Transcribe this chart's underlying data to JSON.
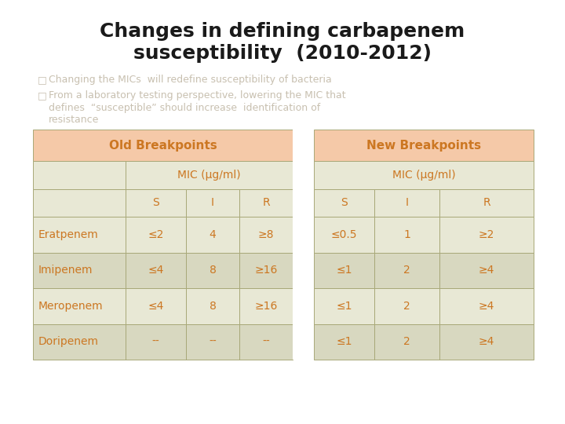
{
  "title_line1": "Changes in defining carbapenem",
  "title_line2": "susceptibility  (2010-2012)",
  "bullet1": "Changing the MICs  will redefine susceptibility of bacteria",
  "bullet2a": "From a laboratory testing perspective, lowering the MIC that",
  "bullet2b": "defines  “susceptible” should increase  identification of",
  "bullet2c": "resistance",
  "bg_color": "#ffffff",
  "title_color": "#1a1a1a",
  "bullet_color": "#c8c0b0",
  "header_bg": "#f5c9a8",
  "row_bg_light": "#e8e8d5",
  "row_bg_dark": "#d8d8c0",
  "header_text_color": "#cc7722",
  "cell_text_color": "#cc7722",
  "border_color": "#a8a878",
  "drugs": [
    "Eratpenem",
    "Imipenem",
    "Meropenem",
    "Doripenem"
  ],
  "old_s": [
    "≤2",
    "≤4",
    "≤4",
    "--"
  ],
  "old_i": [
    "4",
    "8",
    "8",
    "--"
  ],
  "old_r": [
    "≥8",
    "≥16",
    "≥16",
    "--"
  ],
  "new_s": [
    "≤0.5",
    "≤1",
    "≤1",
    "≤1"
  ],
  "new_i": [
    "1",
    "2",
    "2",
    "2"
  ],
  "new_r": [
    "≥2",
    "≥4",
    "≥4",
    "≥4"
  ]
}
